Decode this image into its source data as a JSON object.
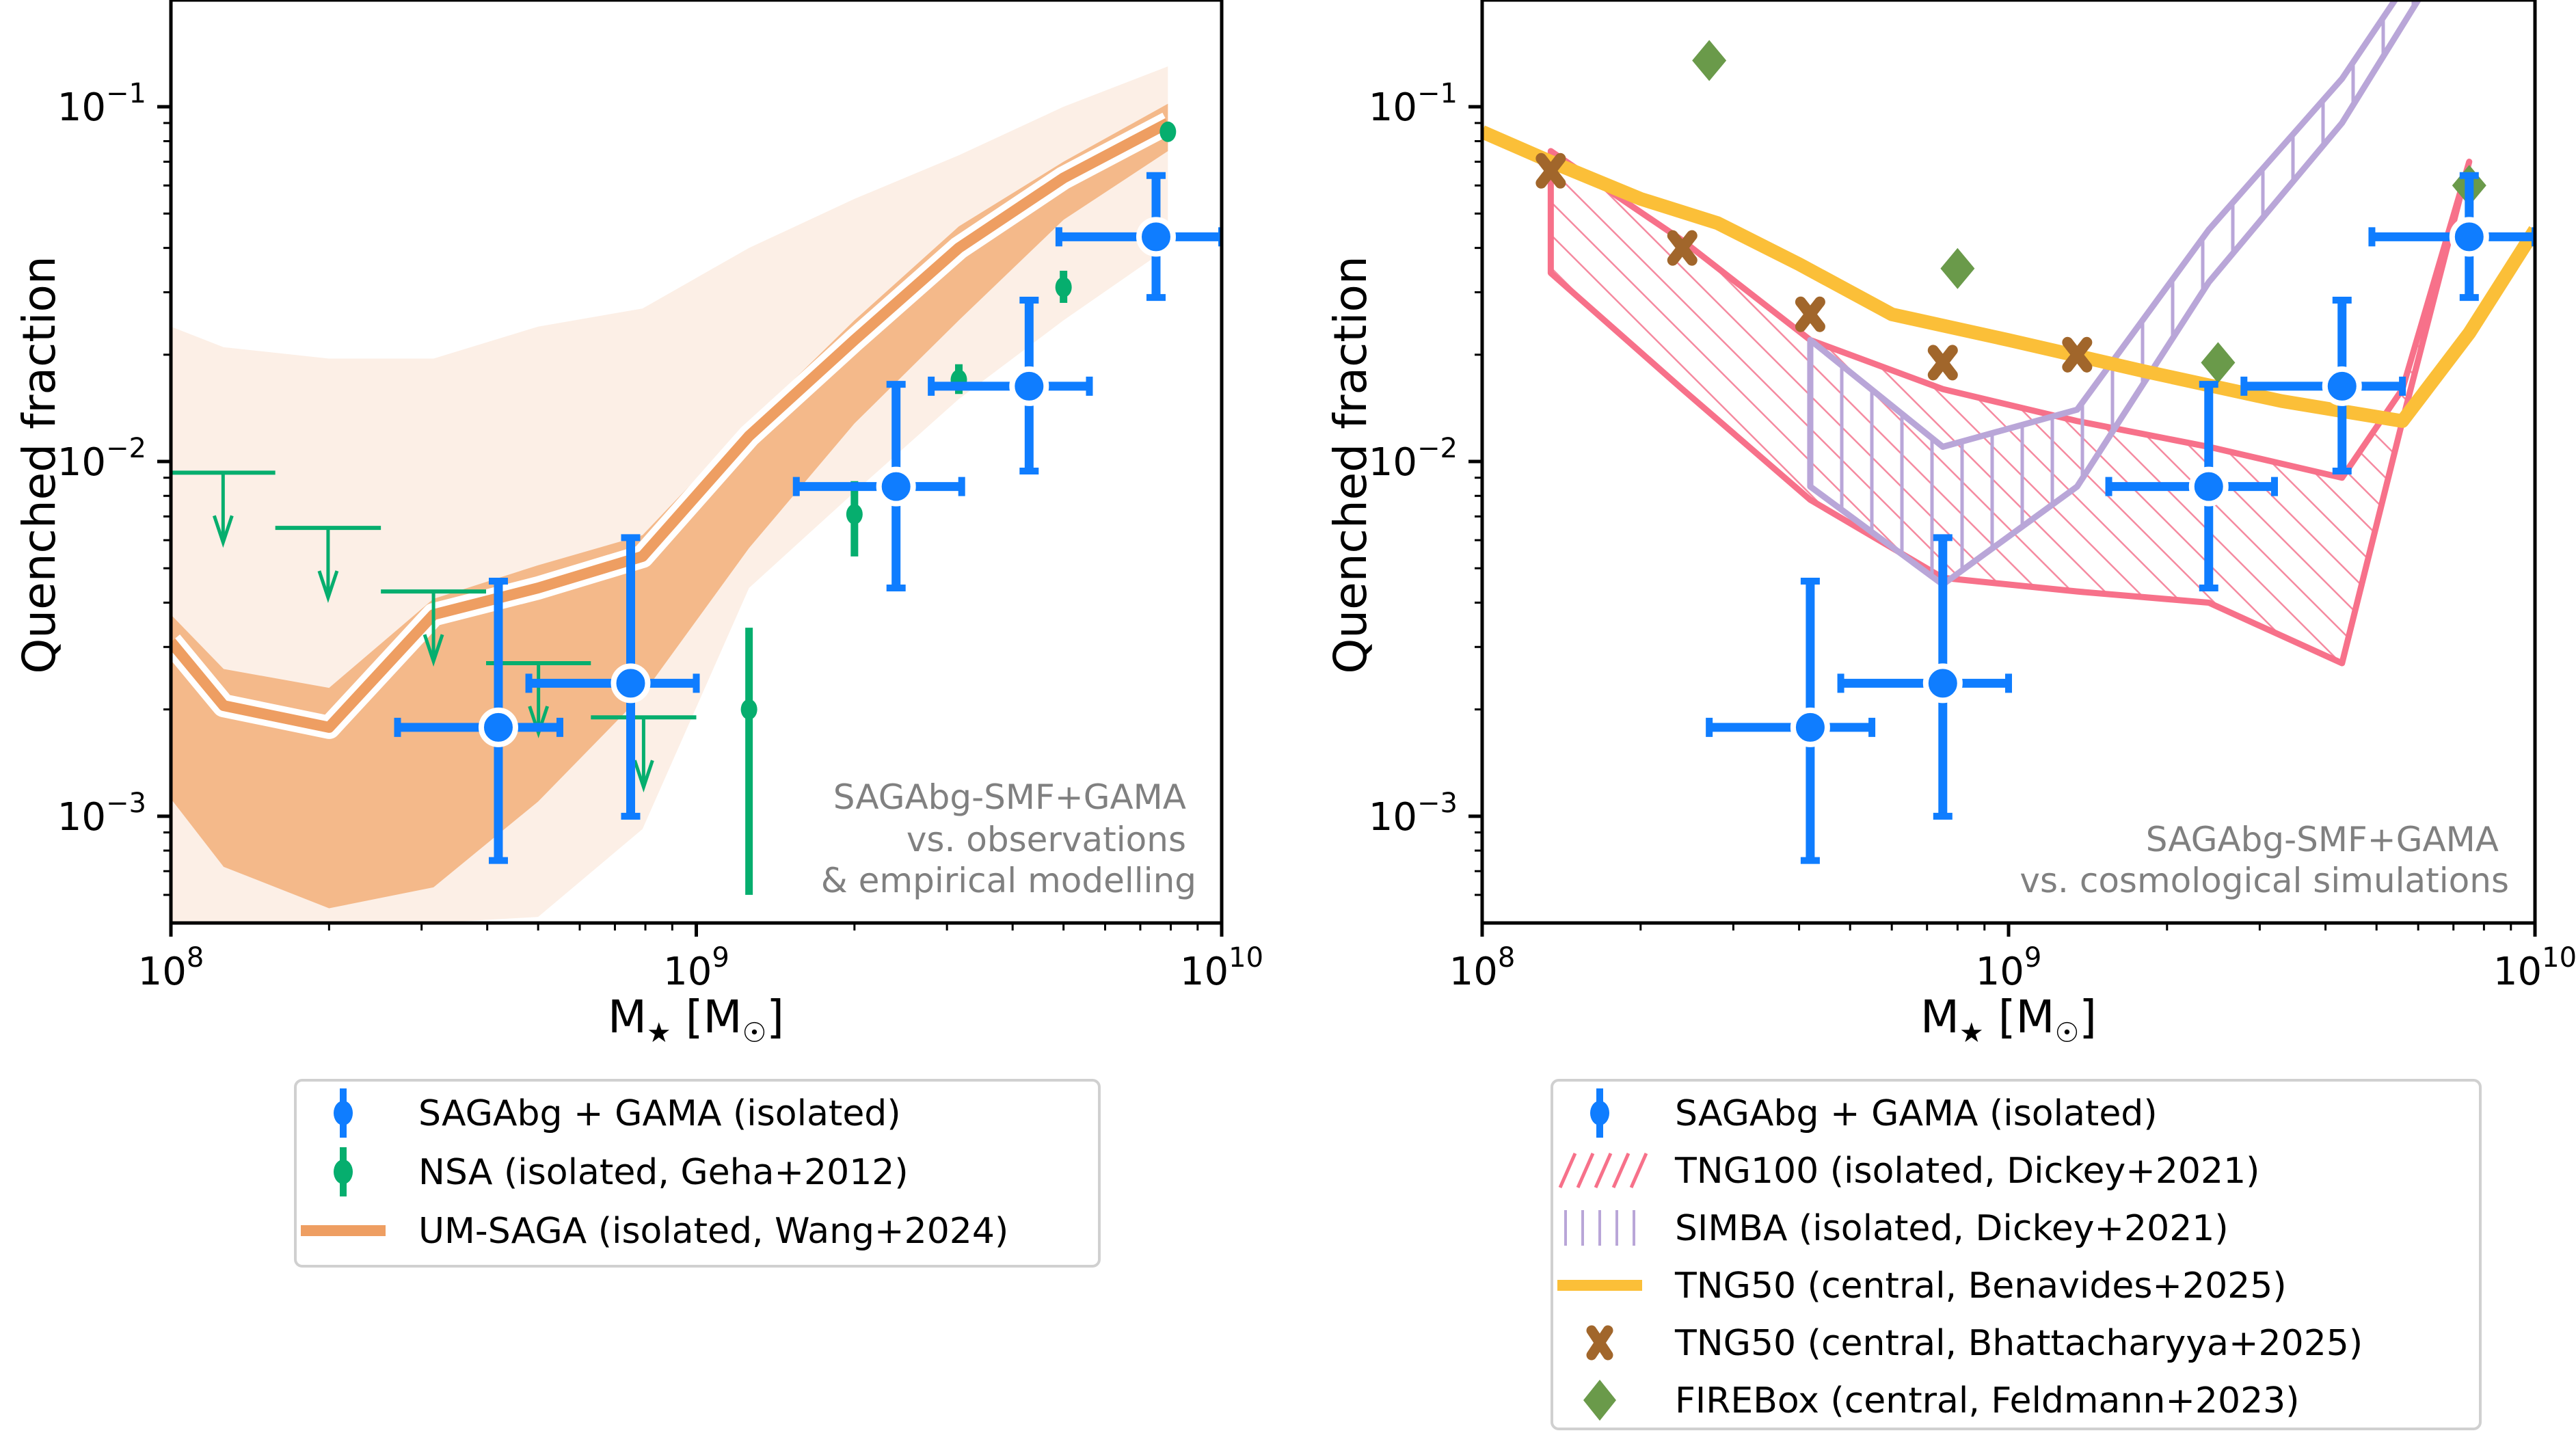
{
  "chart_data": [
    {
      "type": "scatter",
      "panel": "left",
      "title": "",
      "xlabel": "M★ [M☉]",
      "ylabel": "Quenched fraction",
      "xscale": "log",
      "yscale": "log",
      "xlim": [
        100000000.0,
        10000000000.0
      ],
      "ylim": [
        0.0005,
        0.2
      ],
      "xticks": [
        {
          "value": 100000000.0,
          "base": "10",
          "exp": "8"
        },
        {
          "value": 1000000000.0,
          "base": "10",
          "exp": "9"
        },
        {
          "value": 10000000000.0,
          "base": "10",
          "exp": "10"
        }
      ],
      "yticks": [
        {
          "value": 0.1,
          "base": "10",
          "exp": "−1"
        },
        {
          "value": 0.01,
          "base": "10",
          "exp": "−2"
        },
        {
          "value": 0.001,
          "base": "10",
          "exp": "−3"
        }
      ],
      "grid": false,
      "annotation": [
        "SAGAbg-SMF+GAMA",
        "vs. observations",
        "& empirical modelling"
      ],
      "annotation_placement": "bottom-right",
      "legend_placement": "below",
      "series": [
        {
          "name": "UM-SAGA (isolated, Wang+2024)",
          "kind": "line_with_bands",
          "color": "#EE9E62",
          "x": [
            100000000.0,
            126000000.0,
            200000000.0,
            316000000.0,
            500000000.0,
            790000000.0,
            1260000000.0,
            2000000000.0,
            3160000000.0,
            5000000000.0,
            7900000000.0
          ],
          "y": [
            0.0031,
            0.00205,
            0.00178,
            0.0037,
            0.0044,
            0.0054,
            0.0118,
            0.022,
            0.04,
            0.063,
            0.09
          ],
          "band_inner_low": [
            0.00112,
            0.00072,
            0.00055,
            0.00063,
            0.0011,
            0.0022,
            0.0057,
            0.0128,
            0.025,
            0.048,
            0.075
          ],
          "band_inner_high": [
            0.0037,
            0.0026,
            0.0023,
            0.0041,
            0.0051,
            0.0062,
            0.0128,
            0.025,
            0.046,
            0.07,
            0.102
          ],
          "band_outer_low": [
            0.0005,
            0.0005,
            0.0005,
            0.0005,
            0.00052,
            0.00092,
            0.0044,
            0.0082,
            0.015,
            0.025,
            0.04
          ],
          "band_outer_high": [
            0.024,
            0.021,
            0.0195,
            0.0195,
            0.024,
            0.027,
            0.04,
            0.055,
            0.073,
            0.1,
            0.13
          ],
          "inner_color": "#F4B98A",
          "outer_color": "#FCEFE6"
        },
        {
          "name": "NSA (isolated, Geha+2012)",
          "kind": "errorbar",
          "color": "#06AE6E",
          "x": [
            1260000000.0,
            2000000000.0,
            3160000000.0,
            5000000000.0,
            7900000000.0
          ],
          "y": [
            0.002,
            0.0071,
            0.017,
            0.031,
            0.085
          ],
          "yerr_low": [
            0.0006,
            0.0054,
            0.0155,
            0.028,
            0.085
          ],
          "yerr_high": [
            0.0034,
            0.0088,
            0.0188,
            0.0345,
            0.085
          ]
        },
        {
          "name": "NSA upper limits",
          "kind": "upper_limit",
          "color": "#06AE6E",
          "x_low": [
            100000000.0,
            158000000.0,
            251000000.0,
            398000000.0,
            630000000.0
          ],
          "x_high": [
            158000000.0,
            251000000.0,
            398000000.0,
            630000000.0,
            1000000000.0
          ],
          "y": [
            0.0093,
            0.0065,
            0.0043,
            0.0027,
            0.0019
          ]
        },
        {
          "name": "SAGAbg + GAMA (isolated)",
          "kind": "errorbar",
          "color": "#0F7DFF",
          "x": [
            420000000.0,
            750000000.0,
            2400000000.0,
            4300000000.0,
            7500000000.0
          ],
          "x_low": [
            270000000.0,
            480000000.0,
            1550000000.0,
            2800000000.0,
            4900000000.0
          ],
          "x_high": [
            550000000.0,
            1000000000.0,
            3200000000.0,
            5600000000.0,
            10000000000.0
          ],
          "y": [
            0.00178,
            0.00237,
            0.0085,
            0.0163,
            0.043
          ],
          "yerr_low": [
            0.00075,
            0.001,
            0.0044,
            0.0094,
            0.029
          ],
          "yerr_high": [
            0.0046,
            0.0061,
            0.0165,
            0.0285,
            0.064
          ]
        }
      ]
    },
    {
      "type": "scatter",
      "panel": "right",
      "title": "",
      "xlabel": "M★ [M☉]",
      "ylabel": "Quenched fraction",
      "xscale": "log",
      "yscale": "log",
      "xlim": [
        100000000.0,
        10000000000.0
      ],
      "ylim": [
        0.0005,
        0.2
      ],
      "xticks": [
        {
          "value": 100000000.0,
          "base": "10",
          "exp": "8"
        },
        {
          "value": 1000000000.0,
          "base": "10",
          "exp": "9"
        },
        {
          "value": 10000000000.0,
          "base": "10",
          "exp": "10"
        }
      ],
      "yticks": [
        {
          "value": 0.1,
          "base": "10",
          "exp": "−1"
        },
        {
          "value": 0.01,
          "base": "10",
          "exp": "−2"
        },
        {
          "value": 0.001,
          "base": "10",
          "exp": "−3"
        }
      ],
      "grid": false,
      "annotation": [
        "SAGAbg-SMF+GAMA",
        "vs. cosmological simulations"
      ],
      "annotation_placement": "bottom-right",
      "legend_placement": "below",
      "series": [
        {
          "name": "TNG100 (isolated, Dickey+2021)",
          "kind": "hatched_band",
          "color": "#F7718A",
          "hatch": "diagonal",
          "x": [
            135000000.0,
            240000000.0,
            420000000.0,
            750000000.0,
            1350000000.0,
            2400000000.0,
            4300000000.0,
            5600000000.0,
            7500000000.0
          ],
          "low": [
            0.034,
            0.016,
            0.0078,
            0.0047,
            0.0043,
            0.004,
            0.0027,
            0.013,
            0.07
          ],
          "high": [
            0.075,
            0.042,
            0.022,
            0.016,
            0.013,
            0.011,
            0.009,
            0.016,
            0.07
          ]
        },
        {
          "name": "SIMBA (isolated, Dickey+2021)",
          "kind": "hatched_band",
          "color": "#B9A6D8",
          "hatch": "vertical",
          "x": [
            420000000.0,
            750000000.0,
            1350000000.0,
            2400000000.0,
            4300000000.0,
            6000000000.0
          ],
          "low": [
            0.0085,
            0.0045,
            0.0085,
            0.032,
            0.09,
            0.2
          ],
          "high": [
            0.022,
            0.011,
            0.014,
            0.045,
            0.12,
            0.25
          ]
        },
        {
          "name": "TNG50 (central, Benavides+2025)",
          "kind": "line",
          "color": "#FBBF38",
          "x": [
            100000000.0,
            135000000.0,
            200000000.0,
            280000000.0,
            400000000.0,
            600000000.0,
            1000000000.0,
            1800000000.0,
            3300000000.0,
            5600000000.0,
            7500000000.0,
            10000000000.0
          ],
          "y": [
            0.085,
            0.07,
            0.055,
            0.047,
            0.036,
            0.026,
            0.022,
            0.018,
            0.0148,
            0.013,
            0.023,
            0.045
          ]
        },
        {
          "name": "TNG50 (central, Bhattacharyya+2025)",
          "kind": "marker",
          "marker": "X",
          "color": "#A1662B",
          "x": [
            135000000.0,
            240000000.0,
            420000000.0,
            750000000.0,
            1350000000.0
          ],
          "y": [
            0.066,
            0.04,
            0.026,
            0.019,
            0.02
          ]
        },
        {
          "name": "FIREBox (central, Feldmann+2023)",
          "kind": "marker",
          "marker": "diamond",
          "color": "#6A9A4A",
          "x": [
            270000000.0,
            800000000.0,
            2500000000.0,
            7500000000.0
          ],
          "y": [
            0.135,
            0.035,
            0.019,
            0.06
          ]
        },
        {
          "name": "SAGAbg + GAMA (isolated)",
          "kind": "errorbar",
          "color": "#0F7DFF",
          "x": [
            420000000.0,
            750000000.0,
            2400000000.0,
            4300000000.0,
            7500000000.0
          ],
          "x_low": [
            270000000.0,
            480000000.0,
            1550000000.0,
            2800000000.0,
            4900000000.0
          ],
          "x_high": [
            550000000.0,
            1000000000.0,
            3200000000.0,
            5600000000.0,
            10000000000.0
          ],
          "y": [
            0.00178,
            0.00237,
            0.0085,
            0.0163,
            0.043
          ],
          "yerr_low": [
            0.00075,
            0.001,
            0.0044,
            0.0094,
            0.029
          ],
          "yerr_high": [
            0.0046,
            0.0061,
            0.0165,
            0.0285,
            0.064
          ]
        }
      ]
    }
  ],
  "legends": {
    "left": [
      {
        "label": "SAGAbg + GAMA (isolated)",
        "icon": "errorbar-dot-icon",
        "color": "#0F7DFF"
      },
      {
        "label": "NSA (isolated, Geha+2012)",
        "icon": "errorbar-dot-icon",
        "color": "#06AE6E"
      },
      {
        "label": "UM-SAGA (isolated, Wang+2024)",
        "icon": "line-icon",
        "color": "#EE9E62"
      }
    ],
    "right": [
      {
        "label": "SAGAbg + GAMA (isolated)",
        "icon": "errorbar-dot-icon",
        "color": "#0F7DFF"
      },
      {
        "label": "TNG100 (isolated, Dickey+2021)",
        "icon": "diagonal-hatch-icon",
        "color": "#F7718A"
      },
      {
        "label": "SIMBA (isolated, Dickey+2021)",
        "icon": "vertical-hatch-icon",
        "color": "#B9A6D8"
      },
      {
        "label": "TNG50 (central, Benavides+2025)",
        "icon": "line-icon",
        "color": "#FBBF38"
      },
      {
        "label": "TNG50 (central, Bhattacharyya+2025)",
        "icon": "x-marker-icon",
        "color": "#A1662B"
      },
      {
        "label": "FIREBox (central, Feldmann+2023)",
        "icon": "diamond-marker-icon",
        "color": "#6A9A4A"
      }
    ]
  },
  "labels": {
    "ylabel": "Quenched fraction",
    "xlabel_main": "M",
    "xlabel_sub": "★",
    "xlabel_unit_open": " [M",
    "xlabel_unit_sub": "☉",
    "xlabel_unit_close": "]"
  }
}
